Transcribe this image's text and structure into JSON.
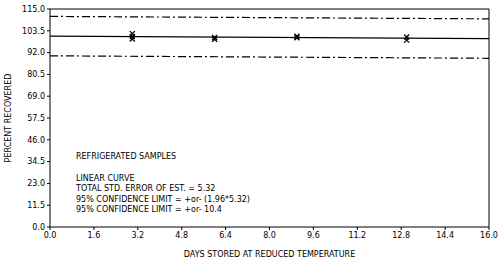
{
  "chart_data": {
    "type": "scatter",
    "x_label": "DAYS STORED AT REDUCED TEMPERATURE",
    "y_label": "PERCENT RECOVERED",
    "xlim": [
      0,
      16
    ],
    "ylim": [
      0,
      115
    ],
    "xticks": [
      {
        "value": 0,
        "label": "0.0"
      },
      1.6,
      3.2,
      4.8,
      6.4,
      {
        "value": 8,
        "label": "8.0"
      },
      9.6,
      11.2,
      12.8,
      14.4,
      {
        "value": 16,
        "label": "16.0"
      }
    ],
    "yticks": [
      {
        "value": 0,
        "label": "0.0"
      },
      11.5,
      {
        "value": 23,
        "label": "23.0"
      },
      34.5,
      {
        "value": 46,
        "label": "46.0"
      },
      57.5,
      {
        "value": 69,
        "label": "69.0"
      },
      80.5,
      {
        "value": 92,
        "label": "92.0"
      },
      103.5,
      {
        "value": 115,
        "label": "115.0"
      }
    ],
    "grid": false,
    "series": [
      {
        "type": "scatter",
        "marker": "x",
        "color": "#000000",
        "x": [
          3,
          3,
          3,
          6,
          6,
          9,
          9,
          13,
          13
        ],
        "values": [
          102,
          100.5,
          99.2,
          100,
          99,
          100.6,
          99.8,
          100.2,
          98.6
        ]
      },
      {
        "type": "line",
        "line_style": "solid",
        "color": "#000000",
        "x": [
          0,
          16
        ],
        "values": [
          100.7,
          99.4
        ]
      },
      {
        "type": "line",
        "line_style": "dashed",
        "color": "#000000",
        "x": [
          0,
          16
        ],
        "values": [
          111.1,
          109.8
        ]
      },
      {
        "type": "line",
        "line_style": "dashed",
        "color": "#000000",
        "x": [
          0,
          16
        ],
        "values": [
          90.3,
          89.0
        ]
      }
    ],
    "annotations": [
      "REFRIGERATED SAMPLES",
      "LINEAR CURVE",
      "TOTAL STD. ERROR OF EST. = 5.32",
      "95% CONFIDENCE LIMIT = +or- (1.96*5.32)",
      "95% CONFIDENCE LIMIT = +or- 10.4"
    ]
  }
}
